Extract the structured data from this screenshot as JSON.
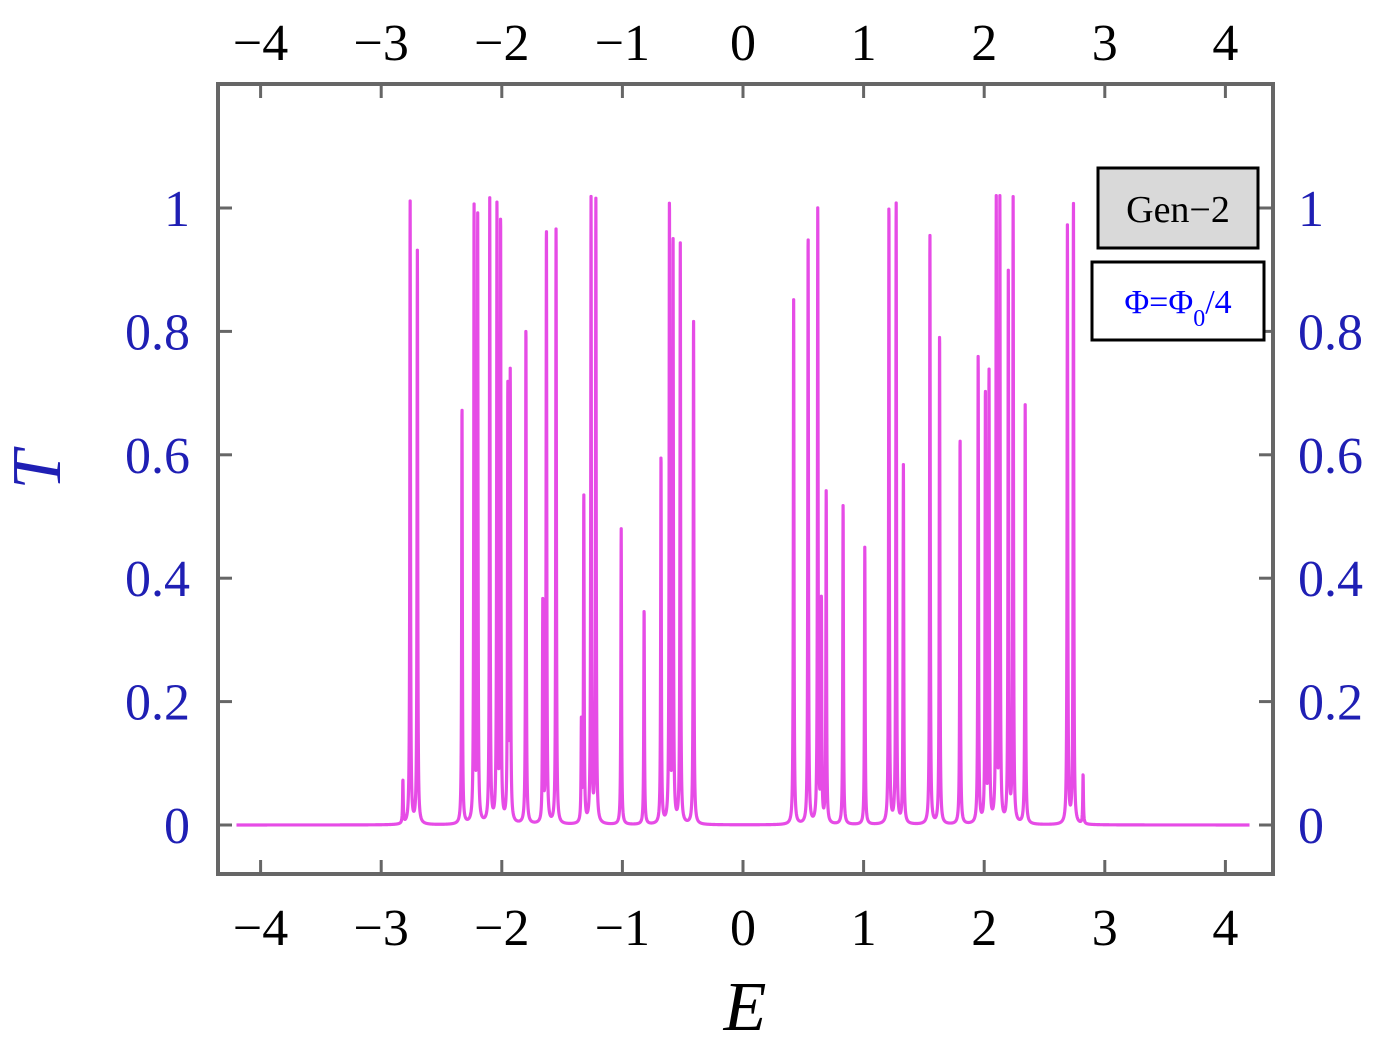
{
  "colors": {
    "line": "#e64ce6",
    "frame": "#666666",
    "y_tick_text": "#1f1fb4",
    "x_tick_text": "#000000",
    "legend1_fill": "#d9d9d9",
    "legend2_text": "#0000ff"
  },
  "chart_data": {
    "type": "line",
    "xlabel": "E",
    "ylabel": "T",
    "xlim": [
      -4.2,
      4.2
    ],
    "ylim": [
      -0.08,
      1.2
    ],
    "x_ticks": [
      -4,
      -3,
      -2,
      -1,
      0,
      1,
      2,
      3,
      4
    ],
    "x_tick_labels": [
      "−4",
      "−3",
      "−2",
      "−1",
      "0",
      "1",
      "2",
      "3",
      "4"
    ],
    "y_ticks": [
      0,
      0.2,
      0.4,
      0.6,
      0.8,
      1
    ],
    "y_tick_labels": [
      "0",
      "0.2",
      "0.4",
      "0.6",
      "0.8",
      "1"
    ],
    "grid": false,
    "legend": [
      {
        "text": "Gen−2",
        "placement": "top-right"
      },
      {
        "text_main": "Φ=Φ",
        "text_sub": "0",
        "text_tail": "/4",
        "placement": "top-right"
      }
    ],
    "series": [
      {
        "x_range": [
          -4.2,
          4.2
        ],
        "peaks": [
          {
            "e": -2.82,
            "h": 0.07
          },
          {
            "e": -2.76,
            "h": 1.01
          },
          {
            "e": -2.7,
            "h": 0.93
          },
          {
            "e": -2.33,
            "h": 0.68
          },
          {
            "e": -2.23,
            "h": 1.0
          },
          {
            "e": -2.2,
            "h": 0.98
          },
          {
            "e": -2.1,
            "h": 1.01
          },
          {
            "e": -2.04,
            "h": 1.0
          },
          {
            "e": -2.01,
            "h": 0.98
          },
          {
            "e": -1.95,
            "h": 0.7
          },
          {
            "e": -1.93,
            "h": 0.72
          },
          {
            "e": -1.8,
            "h": 0.81
          },
          {
            "e": -1.66,
            "h": 0.36
          },
          {
            "e": -1.63,
            "h": 0.97
          },
          {
            "e": -1.55,
            "h": 0.97
          },
          {
            "e": -1.34,
            "h": 0.16
          },
          {
            "e": -1.32,
            "h": 0.53
          },
          {
            "e": -1.26,
            "h": 1.01
          },
          {
            "e": -1.22,
            "h": 1.01
          },
          {
            "e": -1.01,
            "h": 0.48
          },
          {
            "e": -0.82,
            "h": 0.35
          },
          {
            "e": -0.68,
            "h": 0.6
          },
          {
            "e": -0.61,
            "h": 1.01
          },
          {
            "e": -0.58,
            "h": 0.95
          },
          {
            "e": -0.52,
            "h": 0.94
          },
          {
            "e": -0.41,
            "h": 0.82
          },
          {
            "e": 0.42,
            "h": 0.85
          },
          {
            "e": 0.54,
            "h": 0.96
          },
          {
            "e": 0.62,
            "h": 1.0
          },
          {
            "e": 0.65,
            "h": 0.36
          },
          {
            "e": 0.69,
            "h": 0.54
          },
          {
            "e": 0.83,
            "h": 0.52
          },
          {
            "e": 1.01,
            "h": 0.45
          },
          {
            "e": 1.21,
            "h": 1.01
          },
          {
            "e": 1.27,
            "h": 1.01
          },
          {
            "e": 1.33,
            "h": 0.58
          },
          {
            "e": 1.55,
            "h": 0.96
          },
          {
            "e": 1.63,
            "h": 0.8
          },
          {
            "e": 1.8,
            "h": 0.63
          },
          {
            "e": 1.95,
            "h": 0.76
          },
          {
            "e": 2.01,
            "h": 0.7
          },
          {
            "e": 2.04,
            "h": 0.73
          },
          {
            "e": 2.1,
            "h": 1.01
          },
          {
            "e": 2.13,
            "h": 1.01
          },
          {
            "e": 2.2,
            "h": 0.89
          },
          {
            "e": 2.24,
            "h": 1.01
          },
          {
            "e": 2.34,
            "h": 0.68
          },
          {
            "e": 2.69,
            "h": 0.97
          },
          {
            "e": 2.74,
            "h": 1.01
          },
          {
            "e": 2.82,
            "h": 0.08
          }
        ]
      }
    ]
  }
}
